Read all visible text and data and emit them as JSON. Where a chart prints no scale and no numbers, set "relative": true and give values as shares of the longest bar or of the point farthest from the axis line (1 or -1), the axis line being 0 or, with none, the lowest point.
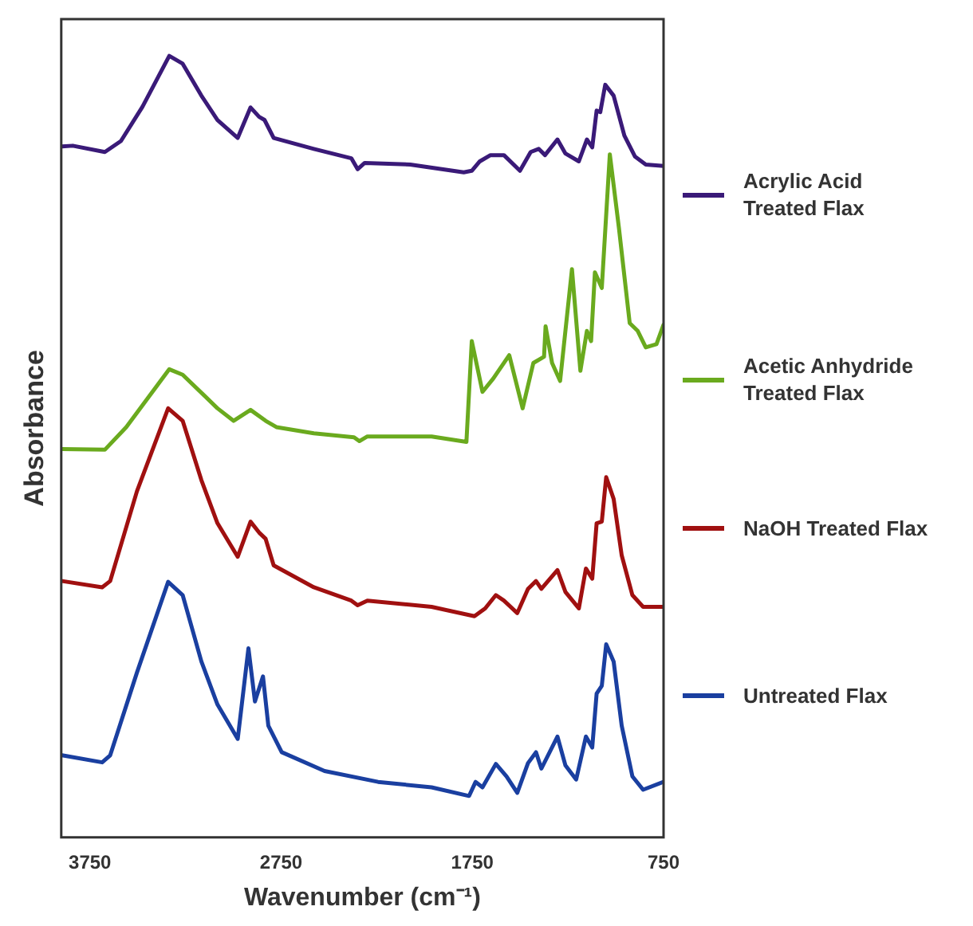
{
  "chart_data": {
    "type": "line",
    "xlabel": "Wavenumber (cm⁻¹)",
    "ylabel": "Absorbance",
    "relative": true,
    "xlim": [
      3900,
      750
    ],
    "xticks": [
      3750,
      2750,
      1750,
      750
    ],
    "grid": false,
    "legend": "right",
    "marker": "none",
    "line_style": "solid",
    "series": [
      {
        "name": "Acrylic Acid Treated Flax",
        "color": "#3a1a78",
        "x": [
          3896,
          3840,
          3672,
          3588,
          3475,
          3335,
          3265,
          3167,
          3083,
          2977,
          2910,
          2865,
          2837,
          2789,
          2579,
          2383,
          2350,
          2313,
          2075,
          1795,
          1753,
          1711,
          1655,
          1585,
          1501,
          1445,
          1403,
          1370,
          1305,
          1263,
          1193,
          1151,
          1123,
          1100,
          1081,
          1055,
          1011,
          955,
          899,
          843,
          750
        ],
        "values": [
          0.884,
          0.885,
          0.877,
          0.891,
          0.935,
          1.0,
          0.99,
          0.949,
          0.918,
          0.895,
          0.934,
          0.922,
          0.918,
          0.895,
          0.881,
          0.869,
          0.855,
          0.863,
          0.861,
          0.851,
          0.853,
          0.865,
          0.873,
          0.873,
          0.853,
          0.877,
          0.881,
          0.873,
          0.893,
          0.875,
          0.865,
          0.893,
          0.883,
          0.93,
          0.928,
          0.963,
          0.949,
          0.898,
          0.871,
          0.861,
          0.859
        ]
      },
      {
        "name": "Acetic Anhydride Treated Flax",
        "color": "#6aaa1e",
        "x": [
          3896,
          3672,
          3560,
          3335,
          3265,
          3083,
          2999,
          2910,
          2831,
          2775,
          2579,
          2369,
          2341,
          2299,
          1963,
          1781,
          1753,
          1697,
          1641,
          1557,
          1487,
          1431,
          1375,
          1367,
          1333,
          1291,
          1229,
          1185,
          1151,
          1129,
          1109,
          1073,
          1031,
          983,
          927,
          885,
          843,
          787,
          750
        ],
        "values": [
          0.497,
          0.496,
          0.525,
          0.599,
          0.592,
          0.549,
          0.533,
          0.547,
          0.533,
          0.525,
          0.517,
          0.512,
          0.507,
          0.513,
          0.513,
          0.506,
          0.635,
          0.57,
          0.587,
          0.617,
          0.549,
          0.607,
          0.615,
          0.654,
          0.607,
          0.584,
          0.727,
          0.597,
          0.648,
          0.635,
          0.723,
          0.703,
          0.874,
          0.779,
          0.658,
          0.648,
          0.627,
          0.631,
          0.656
        ]
      },
      {
        "name": "NaOH Treated Flax",
        "color": "#a01010",
        "x": [
          3896,
          3686,
          3644,
          3504,
          3341,
          3265,
          3167,
          3083,
          2977,
          2910,
          2865,
          2831,
          2789,
          2579,
          2383,
          2350,
          2299,
          1963,
          1739,
          1683,
          1627,
          1585,
          1515,
          1459,
          1417,
          1389,
          1305,
          1263,
          1193,
          1156,
          1123,
          1100,
          1073,
          1050,
          1011,
          969,
          913,
          857,
          750
        ],
        "values": [
          0.328,
          0.32,
          0.328,
          0.443,
          0.549,
          0.533,
          0.457,
          0.402,
          0.359,
          0.404,
          0.39,
          0.382,
          0.348,
          0.32,
          0.303,
          0.297,
          0.303,
          0.295,
          0.283,
          0.293,
          0.31,
          0.303,
          0.287,
          0.318,
          0.328,
          0.318,
          0.342,
          0.314,
          0.293,
          0.344,
          0.331,
          0.402,
          0.404,
          0.461,
          0.433,
          0.361,
          0.31,
          0.295,
          0.295
        ]
      },
      {
        "name": "Untreated Flax",
        "color": "#1a3fa0",
        "x": [
          3896,
          3686,
          3644,
          3504,
          3341,
          3265,
          3167,
          3083,
          2977,
          2921,
          2887,
          2845,
          2817,
          2747,
          2523,
          2243,
          1963,
          1767,
          1733,
          1697,
          1627,
          1571,
          1515,
          1459,
          1417,
          1389,
          1305,
          1263,
          1207,
          1156,
          1123,
          1100,
          1073,
          1050,
          1011,
          969,
          913,
          857,
          750
        ],
        "values": [
          0.105,
          0.096,
          0.105,
          0.211,
          0.327,
          0.31,
          0.225,
          0.17,
          0.126,
          0.242,
          0.174,
          0.206,
          0.143,
          0.109,
          0.085,
          0.071,
          0.064,
          0.053,
          0.071,
          0.064,
          0.094,
          0.078,
          0.057,
          0.095,
          0.109,
          0.088,
          0.129,
          0.092,
          0.074,
          0.129,
          0.115,
          0.184,
          0.194,
          0.247,
          0.225,
          0.143,
          0.078,
          0.061,
          0.071
        ]
      }
    ]
  }
}
